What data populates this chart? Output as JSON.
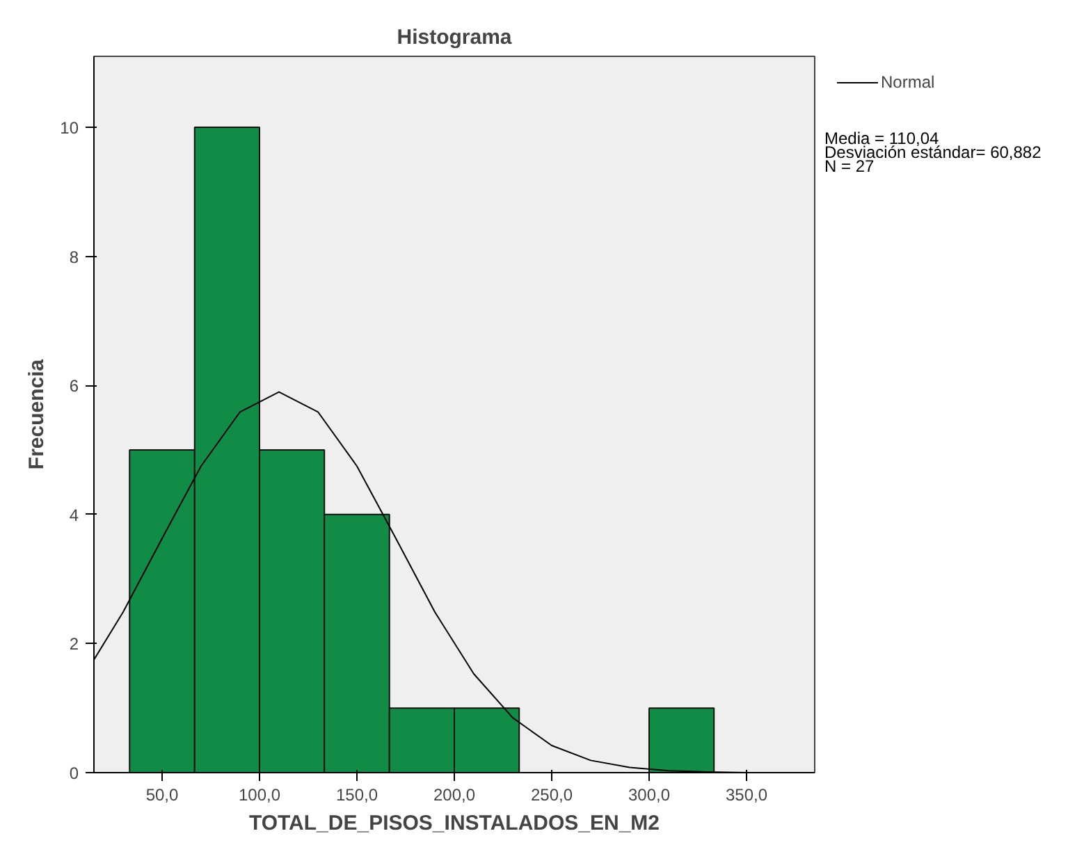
{
  "chart_data": {
    "type": "histogram",
    "title": "Histograma",
    "xlabel": "TOTAL_DE_PISOS_INSTALADOS_EN_M2",
    "ylabel": "Frecuencia",
    "bins": [
      33.3,
      66.7,
      100,
      133.3,
      166.7,
      200,
      233.3,
      266.7,
      300,
      333.3
    ],
    "values": [
      5,
      10,
      5,
      4,
      1,
      1,
      0,
      0,
      1
    ],
    "color": "#108c47",
    "series": [
      {
        "name": "Normal",
        "type": "line",
        "color": "#000000",
        "x": [
          15,
          30,
          50,
          70,
          90,
          110,
          130,
          150,
          170,
          190,
          210,
          230,
          250,
          270,
          290,
          310,
          330,
          350,
          370,
          385
        ],
        "values": [
          1.75,
          2.49,
          3.63,
          4.75,
          5.59,
          5.9,
          5.59,
          4.75,
          3.63,
          2.49,
          1.53,
          0.85,
          0.42,
          0.19,
          0.08,
          0.03,
          0.01,
          0,
          0,
          0
        ]
      }
    ],
    "xlim": [
      15,
      385
    ],
    "ylim": [
      0,
      11.1
    ],
    "xticks": [
      {
        "value": 50,
        "label": "50,0"
      },
      {
        "value": 100,
        "label": "100,0"
      },
      {
        "value": 150,
        "label": "150,0"
      },
      {
        "value": 200,
        "label": "200,0"
      },
      {
        "value": 250,
        "label": "250,0"
      },
      {
        "value": 300,
        "label": "300,0"
      },
      {
        "value": 350,
        "label": "350,0"
      }
    ],
    "yticks": [
      0,
      2,
      4,
      6,
      8,
      10
    ],
    "grid": false,
    "legend": "top right",
    "annotations": [
      "Media = 110,04",
      "Desviación estándar= 60,882",
      "N = 27"
    ]
  }
}
